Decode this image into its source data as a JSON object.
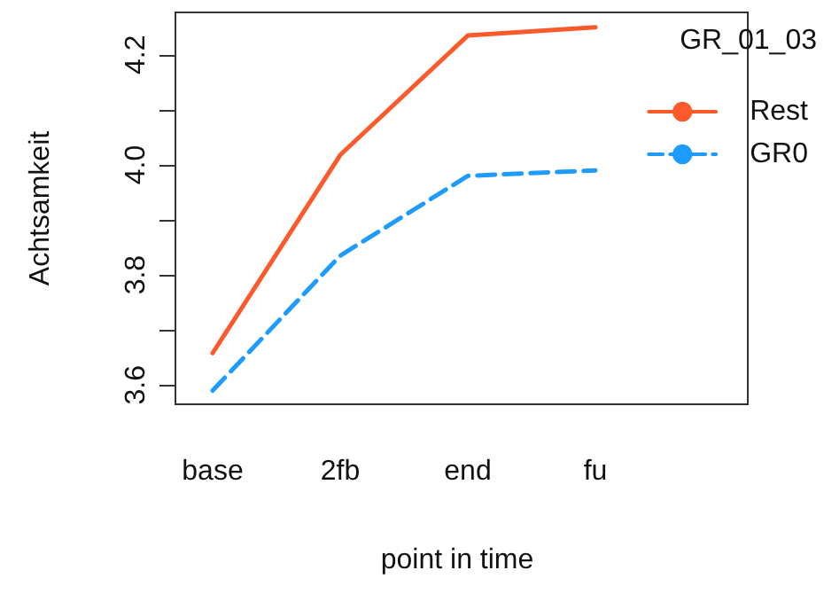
{
  "chart_data": {
    "type": "line",
    "xlabel": "point in time",
    "ylabel": "Achtsamkeit",
    "legend_title": "GR_01_03",
    "legend": "top right",
    "grid": false,
    "categories": [
      "base",
      "2fb",
      "end",
      "fu"
    ],
    "series": [
      {
        "name": "Rest",
        "color": "#fc5a2b",
        "line_style": "solid",
        "values": [
          3.658,
          4.018,
          4.235,
          4.25
        ]
      },
      {
        "name": "GR0",
        "color": "#1e9bff",
        "line_style": "dashed",
        "values": [
          3.59,
          3.835,
          3.98,
          3.99
        ]
      }
    ],
    "ylim": [
      3.565,
      4.277
    ],
    "yticks": [
      {
        "value": 3.6,
        "label": "3.6"
      },
      {
        "value": 3.7,
        "label": null
      },
      {
        "value": 3.8,
        "label": "3.8"
      },
      {
        "value": 3.9,
        "label": null
      },
      {
        "value": 4.0,
        "label": "4.0"
      },
      {
        "value": 4.1,
        "label": null
      },
      {
        "value": 4.2,
        "label": "4.2"
      }
    ]
  }
}
